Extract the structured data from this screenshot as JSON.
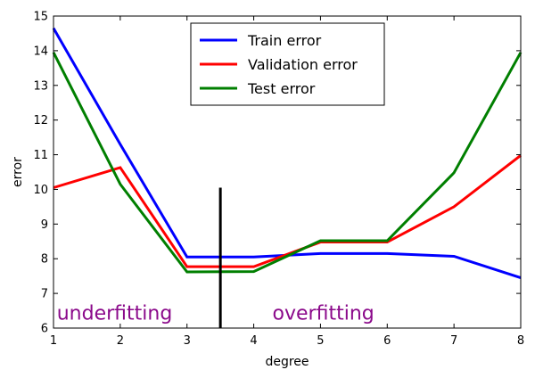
{
  "chart_data": {
    "type": "line",
    "xlabel": "degree",
    "ylabel": "error",
    "xlim": [
      1,
      8
    ],
    "ylim": [
      6,
      15
    ],
    "x_ticks": [
      "1",
      "2",
      "3",
      "4",
      "5",
      "6",
      "7",
      "8"
    ],
    "y_ticks": [
      "6",
      "7",
      "8",
      "9",
      "10",
      "11",
      "12",
      "13",
      "14",
      "15"
    ],
    "x": [
      1,
      2,
      3,
      4,
      5,
      6,
      7,
      8
    ],
    "series": [
      {
        "name": "Train error",
        "color": "#0000ff",
        "values": [
          14.65,
          11.3,
          8.05,
          8.05,
          8.15,
          8.15,
          8.07,
          7.45
        ]
      },
      {
        "name": "Validation error",
        "color": "#ff0000",
        "values": [
          10.05,
          10.63,
          7.77,
          7.77,
          8.48,
          8.48,
          9.5,
          10.98
        ]
      },
      {
        "name": "Test error",
        "color": "#007f00",
        "values": [
          13.95,
          10.15,
          7.62,
          7.63,
          8.52,
          8.52,
          10.48,
          13.95
        ]
      }
    ],
    "vertical_line": {
      "x": 3.5,
      "y_from": 6,
      "y_to": 10.05,
      "color": "#000000"
    },
    "annotations": [
      {
        "text": "underfitting",
        "x": 1.05,
        "y": 6.25
      },
      {
        "text": "overfitting",
        "x": 4.28,
        "y": 6.25
      }
    ],
    "annotation_color": "#8b0a8b",
    "legend_position": "top-center",
    "grid": false
  }
}
